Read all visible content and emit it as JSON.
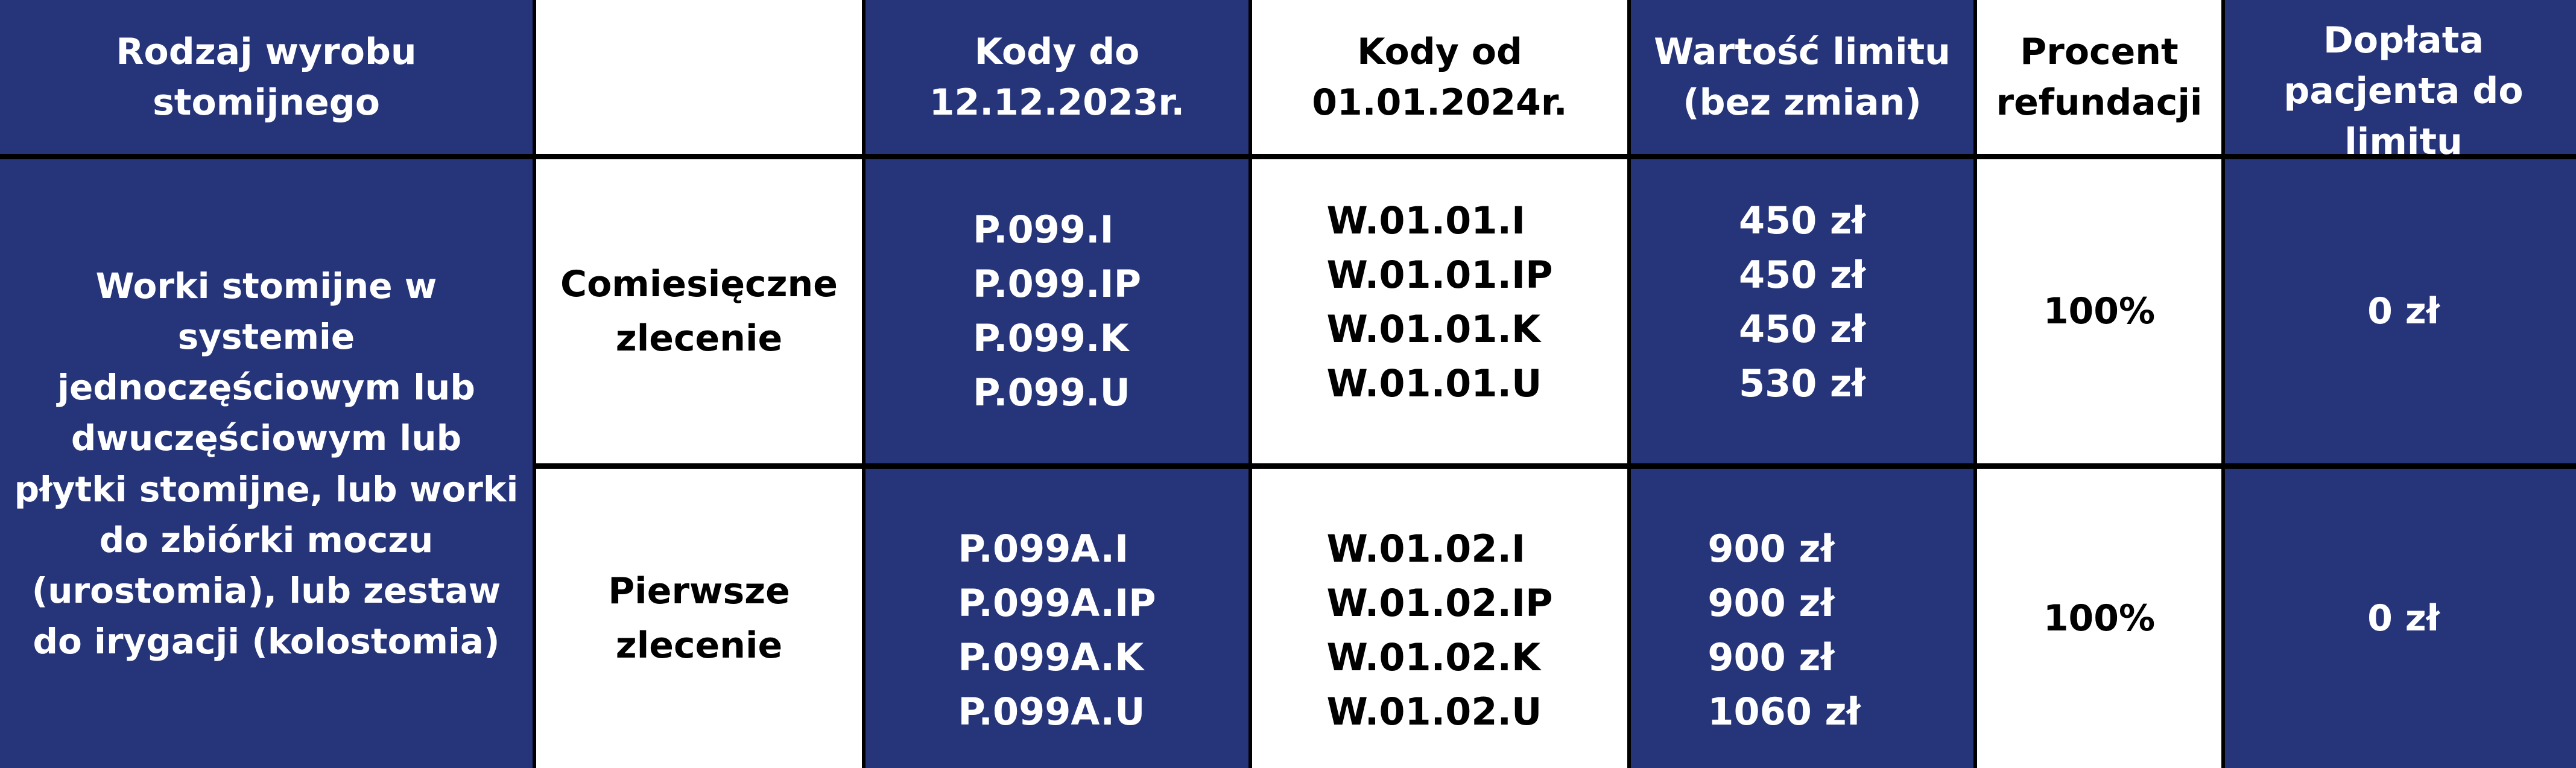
{
  "header": {
    "product_type": "Rodzaj wyrobu stomijnego",
    "empty": "",
    "codes_old": "Kody do 12.12.2023r.",
    "codes_new": "Kody od 01.01.2024r.",
    "limit_value": "Wartość limitu (bez zmian)",
    "refund_percent": "Procent refundacji",
    "patient_copay": "Dopłata pacjenta do limitu"
  },
  "product_description": "Worki stomijne w systemie jednoczęściowym lub dwuczęściowym lub płytki stomijne, lub worki do zbiórki moczu (urostomia), lub zestaw do irygacji (kolostomia)",
  "rows": [
    {
      "order_type": "Comiesięczne zlecenie",
      "codes_old": [
        "P.099.I",
        "P.099.IP",
        "P.099.K",
        "P.099.U"
      ],
      "codes_new": [
        "W.01.01.I",
        "W.01.01.IP",
        "W.01.01.K",
        "W.01.01.U"
      ],
      "limits": [
        "450 zł",
        "450 zł",
        "450 zł",
        "530 zł"
      ],
      "refund": "100%",
      "copay": "0 zł"
    },
    {
      "order_type": "Pierwsze zlecenie",
      "codes_old": [
        "P.099A.I",
        "P.099A.IP",
        "P.099A.K",
        "P.099A.U"
      ],
      "codes_new": [
        "W.01.02.I",
        "W.01.02.IP",
        "W.01.02.K",
        "W.01.02.U"
      ],
      "limits": [
        "900 zł",
        "900 zł",
        "900 zł",
        "1060 zł"
      ],
      "refund": "100%",
      "copay": "0 zł"
    }
  ],
  "colors": {
    "navy": "#26357a",
    "white": "#ffffff",
    "border": "#000000"
  }
}
